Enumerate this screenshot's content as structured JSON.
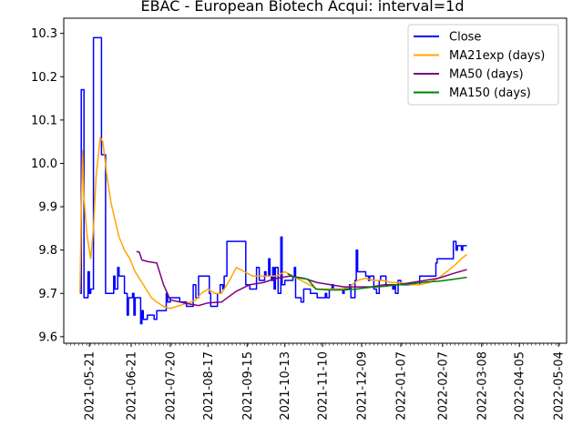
{
  "chart_data": {
    "type": "line",
    "title": "EBAC - European Biotech Acqui: interval=1d",
    "xlabel": "",
    "ylabel": "",
    "x_range": [
      "2021-05-02",
      "2022-05-10"
    ],
    "ylim": [
      9.585,
      10.335
    ],
    "x_ticks": [
      "2021-05-21",
      "2021-06-21",
      "2021-07-20",
      "2021-08-17",
      "2021-09-15",
      "2021-10-13",
      "2021-11-10",
      "2021-12-09",
      "2022-01-07",
      "2022-02-07",
      "2022-03-08",
      "2022-04-05",
      "2022-05-04"
    ],
    "y_ticks": [
      9.6,
      9.7,
      9.8,
      9.9,
      10.0,
      10.1,
      10.2,
      10.3
    ],
    "grid": false,
    "legend_position": "top-right",
    "series": [
      {
        "name": "Close",
        "color": "#0000ff",
        "points": [
          [
            "2021-05-14",
            9.7
          ],
          [
            "2021-05-15",
            10.17
          ],
          [
            "2021-05-16",
            10.17
          ],
          [
            "2021-05-17",
            9.69
          ],
          [
            "2021-05-19",
            9.69
          ],
          [
            "2021-05-20",
            9.75
          ],
          [
            "2021-05-21",
            9.7
          ],
          [
            "2021-05-22",
            9.71
          ],
          [
            "2021-05-24",
            10.29
          ],
          [
            "2021-05-28",
            10.29
          ],
          [
            "2021-05-30",
            10.02
          ],
          [
            "2021-06-02",
            9.7
          ],
          [
            "2021-06-07",
            9.7
          ],
          [
            "2021-06-08",
            9.74
          ],
          [
            "2021-06-09",
            9.71
          ],
          [
            "2021-06-11",
            9.76
          ],
          [
            "2021-06-12",
            9.74
          ],
          [
            "2021-06-15",
            9.74
          ],
          [
            "2021-06-16",
            9.7
          ],
          [
            "2021-06-17",
            9.7
          ],
          [
            "2021-06-18",
            9.65
          ],
          [
            "2021-06-19",
            9.69
          ],
          [
            "2021-06-21",
            9.69
          ],
          [
            "2021-06-22",
            9.7
          ],
          [
            "2021-06-23",
            9.65
          ],
          [
            "2021-06-24",
            9.69
          ],
          [
            "2021-06-27",
            9.69
          ],
          [
            "2021-06-28",
            9.63
          ],
          [
            "2021-06-29",
            9.66
          ],
          [
            "2021-06-30",
            9.64
          ],
          [
            "2021-07-02",
            9.64
          ],
          [
            "2021-07-03",
            9.65
          ],
          [
            "2021-07-07",
            9.65
          ],
          [
            "2021-07-08",
            9.64
          ],
          [
            "2021-07-10",
            9.66
          ],
          [
            "2021-07-15",
            9.66
          ],
          [
            "2021-07-17",
            9.7
          ],
          [
            "2021-07-18",
            9.68
          ],
          [
            "2021-07-20",
            9.69
          ],
          [
            "2021-07-26",
            9.69
          ],
          [
            "2021-07-27",
            9.68
          ],
          [
            "2021-08-01",
            9.67
          ],
          [
            "2021-08-05",
            9.67
          ],
          [
            "2021-08-06",
            9.72
          ],
          [
            "2021-08-07",
            9.72
          ],
          [
            "2021-08-08",
            9.69
          ],
          [
            "2021-08-10",
            9.74
          ],
          [
            "2021-08-17",
            9.74
          ],
          [
            "2021-08-18",
            9.7
          ],
          [
            "2021-08-19",
            9.67
          ],
          [
            "2021-08-23",
            9.67
          ],
          [
            "2021-08-24",
            9.7
          ],
          [
            "2021-08-26",
            9.72
          ],
          [
            "2021-08-28",
            9.71
          ],
          [
            "2021-08-29",
            9.74
          ],
          [
            "2021-08-31",
            9.82
          ],
          [
            "2021-09-13",
            9.82
          ],
          [
            "2021-09-14",
            9.72
          ],
          [
            "2021-09-17",
            9.71
          ],
          [
            "2021-09-19",
            9.71
          ],
          [
            "2021-09-21",
            9.71
          ],
          [
            "2021-09-22",
            9.76
          ],
          [
            "2021-09-23",
            9.76
          ],
          [
            "2021-09-24",
            9.73
          ],
          [
            "2021-09-26",
            9.73
          ],
          [
            "2021-09-28",
            9.75
          ],
          [
            "2021-09-29",
            9.74
          ],
          [
            "2021-10-01",
            9.78
          ],
          [
            "2021-10-02",
            9.74
          ],
          [
            "2021-10-03",
            9.73
          ],
          [
            "2021-10-04",
            9.76
          ],
          [
            "2021-10-05",
            9.71
          ],
          [
            "2021-10-06",
            9.76
          ],
          [
            "2021-10-07",
            9.76
          ],
          [
            "2021-10-08",
            9.7
          ],
          [
            "2021-10-10",
            9.83
          ],
          [
            "2021-10-11",
            9.72
          ],
          [
            "2021-10-13",
            9.73
          ],
          [
            "2021-10-15",
            9.73
          ],
          [
            "2021-10-18",
            9.73
          ],
          [
            "2021-10-19",
            9.74
          ],
          [
            "2021-10-20",
            9.76
          ],
          [
            "2021-10-21",
            9.69
          ],
          [
            "2021-10-22",
            9.69
          ],
          [
            "2021-10-23",
            9.69
          ],
          [
            "2021-10-25",
            9.68
          ],
          [
            "2021-10-27",
            9.71
          ],
          [
            "2021-11-01",
            9.7
          ],
          [
            "2021-11-03",
            9.7
          ],
          [
            "2021-11-05",
            9.7
          ],
          [
            "2021-11-06",
            9.69
          ],
          [
            "2021-11-10",
            9.69
          ],
          [
            "2021-11-12",
            9.7
          ],
          [
            "2021-11-13",
            9.69
          ],
          [
            "2021-11-15",
            9.71
          ],
          [
            "2021-11-17",
            9.72
          ],
          [
            "2021-11-18",
            9.71
          ],
          [
            "2021-11-20",
            9.71
          ],
          [
            "2021-11-25",
            9.7
          ],
          [
            "2021-11-26",
            9.71
          ],
          [
            "2021-11-28",
            9.71
          ],
          [
            "2021-11-30",
            9.72
          ],
          [
            "2021-12-01",
            9.69
          ],
          [
            "2021-12-04",
            9.73
          ],
          [
            "2021-12-05",
            9.8
          ],
          [
            "2021-12-06",
            9.75
          ],
          [
            "2021-12-07",
            9.75
          ],
          [
            "2021-12-11",
            9.75
          ],
          [
            "2021-12-12",
            9.74
          ],
          [
            "2021-12-14",
            9.73
          ],
          [
            "2021-12-15",
            9.74
          ],
          [
            "2021-12-18",
            9.71
          ],
          [
            "2021-12-20",
            9.7
          ],
          [
            "2021-12-21",
            9.7
          ],
          [
            "2021-12-22",
            9.73
          ],
          [
            "2021-12-23",
            9.74
          ],
          [
            "2021-12-26",
            9.74
          ],
          [
            "2021-12-27",
            9.72
          ],
          [
            "2021-12-31",
            9.72
          ],
          [
            "2022-01-01",
            9.71
          ],
          [
            "2022-01-02",
            9.72
          ],
          [
            "2022-01-03",
            9.7
          ],
          [
            "2022-01-05",
            9.73
          ],
          [
            "2022-01-07",
            9.72
          ],
          [
            "2022-01-08",
            9.72
          ],
          [
            "2022-01-10",
            9.72
          ],
          [
            "2022-01-12",
            9.72
          ],
          [
            "2022-01-14",
            9.72
          ],
          [
            "2022-01-20",
            9.72
          ],
          [
            "2022-01-21",
            9.74
          ],
          [
            "2022-01-27",
            9.74
          ],
          [
            "2022-01-28",
            9.74
          ],
          [
            "2022-01-30",
            9.74
          ],
          [
            "2022-02-01",
            9.74
          ],
          [
            "2022-02-02",
            9.77
          ],
          [
            "2022-02-03",
            9.78
          ],
          [
            "2022-02-10",
            9.78
          ],
          [
            "2022-02-11",
            9.78
          ],
          [
            "2022-02-12",
            9.78
          ],
          [
            "2022-02-14",
            9.78
          ],
          [
            "2022-02-15",
            9.82
          ],
          [
            "2022-02-16",
            9.82
          ],
          [
            "2022-02-17",
            9.8
          ],
          [
            "2022-02-18",
            9.81
          ],
          [
            "2022-02-20",
            9.81
          ],
          [
            "2022-02-21",
            9.8
          ],
          [
            "2022-02-22",
            9.81
          ],
          [
            "2022-02-25",
            9.81
          ]
        ]
      },
      {
        "name": "MA21exp (days)",
        "color": "#ffa500",
        "points": [
          [
            "2021-05-14",
            9.7
          ],
          [
            "2021-05-15",
            9.89
          ],
          [
            "2021-05-16",
            10.03
          ],
          [
            "2021-05-17",
            9.92
          ],
          [
            "2021-05-19",
            9.84
          ],
          [
            "2021-05-20",
            9.82
          ],
          [
            "2021-05-22",
            9.78
          ],
          [
            "2021-05-24",
            9.85
          ],
          [
            "2021-05-26",
            9.97
          ],
          [
            "2021-05-29",
            10.06
          ],
          [
            "2021-05-31",
            10.05
          ],
          [
            "2021-06-03",
            9.97
          ],
          [
            "2021-06-06",
            9.91
          ],
          [
            "2021-06-09",
            9.87
          ],
          [
            "2021-06-12",
            9.83
          ],
          [
            "2021-06-16",
            9.8
          ],
          [
            "2021-06-20",
            9.78
          ],
          [
            "2021-06-24",
            9.75
          ],
          [
            "2021-06-28",
            9.73
          ],
          [
            "2021-07-02",
            9.71
          ],
          [
            "2021-07-06",
            9.69
          ],
          [
            "2021-07-10",
            9.68
          ],
          [
            "2021-07-15",
            9.67
          ],
          [
            "2021-07-20",
            9.665
          ],
          [
            "2021-07-25",
            9.67
          ],
          [
            "2021-07-30",
            9.675
          ],
          [
            "2021-08-04",
            9.68
          ],
          [
            "2021-08-08",
            9.685
          ],
          [
            "2021-08-12",
            9.7
          ],
          [
            "2021-08-17",
            9.71
          ],
          [
            "2021-08-22",
            9.7
          ],
          [
            "2021-08-27",
            9.7
          ],
          [
            "2021-09-02",
            9.73
          ],
          [
            "2021-09-07",
            9.76
          ],
          [
            "2021-09-13",
            9.75
          ],
          [
            "2021-09-19",
            9.74
          ],
          [
            "2021-09-25",
            9.74
          ],
          [
            "2021-10-01",
            9.74
          ],
          [
            "2021-10-07",
            9.74
          ],
          [
            "2021-10-13",
            9.75
          ],
          [
            "2021-10-19",
            9.74
          ],
          [
            "2021-10-25",
            9.73
          ],
          [
            "2021-10-31",
            9.72
          ],
          [
            "2021-11-06",
            9.71
          ],
          [
            "2021-11-12",
            9.71
          ],
          [
            "2021-11-18",
            9.71
          ],
          [
            "2021-11-24",
            9.71
          ],
          [
            "2021-11-30",
            9.715
          ],
          [
            "2021-12-06",
            9.73
          ],
          [
            "2021-12-12",
            9.735
          ],
          [
            "2021-12-18",
            9.73
          ],
          [
            "2021-12-24",
            9.73
          ],
          [
            "2021-12-31",
            9.725
          ],
          [
            "2022-01-07",
            9.725
          ],
          [
            "2022-01-14",
            9.72
          ],
          [
            "2022-01-21",
            9.72
          ],
          [
            "2022-01-28",
            9.725
          ],
          [
            "2022-02-04",
            9.735
          ],
          [
            "2022-02-10",
            9.75
          ],
          [
            "2022-02-16",
            9.765
          ],
          [
            "2022-02-21",
            9.78
          ],
          [
            "2022-02-25",
            9.79
          ]
        ]
      },
      {
        "name": "MA50 (days)",
        "color": "#800080",
        "points": [
          [
            "2021-06-25",
            9.797
          ],
          [
            "2021-06-27",
            9.795
          ],
          [
            "2021-06-29",
            9.777
          ],
          [
            "2021-07-04",
            9.773
          ],
          [
            "2021-07-10",
            9.77
          ],
          [
            "2021-07-15",
            9.72
          ],
          [
            "2021-07-20",
            9.685
          ],
          [
            "2021-07-30",
            9.678
          ],
          [
            "2021-08-10",
            9.672
          ],
          [
            "2021-08-17",
            9.678
          ],
          [
            "2021-08-27",
            9.68
          ],
          [
            "2021-09-07",
            9.705
          ],
          [
            "2021-09-17",
            9.72
          ],
          [
            "2021-09-27",
            9.725
          ],
          [
            "2021-10-07",
            9.735
          ],
          [
            "2021-10-17",
            9.74
          ],
          [
            "2021-10-27",
            9.735
          ],
          [
            "2021-11-06",
            9.725
          ],
          [
            "2021-11-16",
            9.72
          ],
          [
            "2021-11-26",
            9.715
          ],
          [
            "2021-12-06",
            9.715
          ],
          [
            "2021-12-16",
            9.715
          ],
          [
            "2021-12-26",
            9.72
          ],
          [
            "2022-01-05",
            9.72
          ],
          [
            "2022-01-15",
            9.725
          ],
          [
            "2022-01-25",
            9.73
          ],
          [
            "2022-02-04",
            9.735
          ],
          [
            "2022-02-14",
            9.745
          ],
          [
            "2022-02-25",
            9.755
          ]
        ]
      },
      {
        "name": "MA150 (days)",
        "color": "#008000",
        "points": [
          [
            "2021-10-15",
            9.745
          ],
          [
            "2021-10-20",
            9.738
          ],
          [
            "2021-10-25",
            9.735
          ],
          [
            "2021-10-30",
            9.733
          ],
          [
            "2021-11-05",
            9.71
          ],
          [
            "2021-11-15",
            9.708
          ],
          [
            "2021-11-25",
            9.708
          ],
          [
            "2021-12-05",
            9.71
          ],
          [
            "2021-12-15",
            9.714
          ],
          [
            "2021-12-25",
            9.716
          ],
          [
            "2022-01-05",
            9.72
          ],
          [
            "2022-01-15",
            9.722
          ],
          [
            "2022-01-25",
            9.726
          ],
          [
            "2022-02-04",
            9.728
          ],
          [
            "2022-02-14",
            9.732
          ],
          [
            "2022-02-25",
            9.737
          ]
        ]
      }
    ]
  }
}
